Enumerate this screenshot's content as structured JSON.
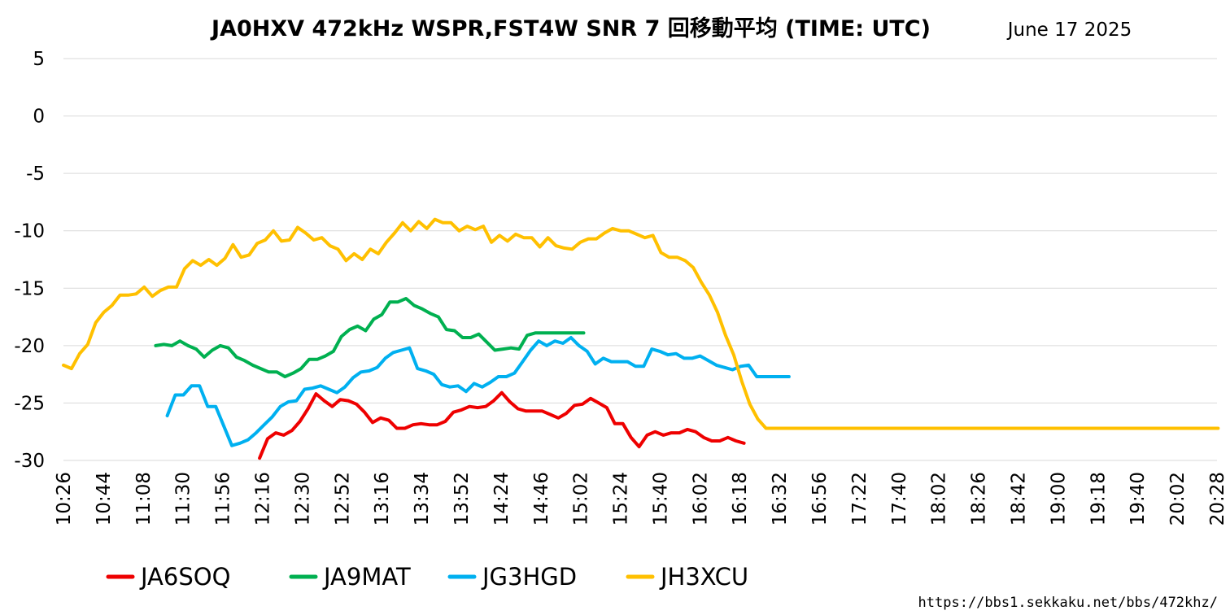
{
  "chart_data": {
    "type": "line",
    "title": "JA0HXV 472kHz WSPR,FST4W SNR 7 回移動平均 (TIME: UTC)",
    "date": "June 17 2025",
    "source_url": "https://bbs1.sekkaku.net/bbs/472khz/",
    "xlabel": "",
    "ylabel": "",
    "ylim": [
      -30,
      5
    ],
    "yticks": [
      "5",
      "0",
      "-5",
      "-10",
      "-15",
      "-20",
      "-25",
      "-30"
    ],
    "ytick_values": [
      5,
      0,
      -5,
      -10,
      -15,
      -20,
      -25,
      -30
    ],
    "x_tick_labels": [
      "10:26",
      "10:44",
      "11:08",
      "11:30",
      "11:56",
      "12:16",
      "12:30",
      "12:52",
      "13:16",
      "13:34",
      "13:52",
      "14:24",
      "14:46",
      "15:02",
      "15:24",
      "15:40",
      "16:02",
      "16:18",
      "16:32",
      "16:56",
      "17:22",
      "17:40",
      "18:02",
      "18:26",
      "18:42",
      "19:00",
      "19:18",
      "19:40",
      "20:02",
      "20:28"
    ],
    "grid": true,
    "legend_position": "bottom",
    "series": [
      {
        "name": "JA6SOQ",
        "color": "#ee0000",
        "x": [
          17,
          17.7,
          18.4,
          19.1,
          19.8,
          20.5,
          21.2,
          21.9,
          22.6,
          23.3,
          24,
          24.7,
          25.4,
          26.1,
          26.8,
          27.5,
          28.2,
          28.9,
          29.6,
          30.3,
          31,
          31.7,
          32.4,
          33.1,
          33.8,
          34.5,
          35.2,
          35.9,
          36.6,
          37.3,
          38,
          38.7,
          39.4,
          40.1,
          40.8,
          41.5,
          42.2,
          42.9,
          43.6,
          44.3,
          45,
          45.7,
          46.4,
          47.1,
          47.8,
          48.5,
          49.2,
          49.9,
          50.6,
          51.3,
          52,
          52.7,
          53.4,
          54.1,
          54.8,
          55.5,
          56.2,
          56.9,
          57.6,
          58.3,
          59
        ],
        "values": [
          -29.8,
          -28.1,
          -27.6,
          -27.8,
          -27.4,
          -26.6,
          -25.5,
          -24.2,
          -24.8,
          -25.3,
          -24.7,
          -24.8,
          -25.1,
          -25.8,
          -26.7,
          -26.3,
          -26.5,
          -27.2,
          -27.2,
          -26.9,
          -26.8,
          -26.9,
          -26.9,
          -26.6,
          -25.8,
          -25.6,
          -25.3,
          -25.4,
          -25.3,
          -24.8,
          -24.1,
          -24.9,
          -25.5,
          -25.7,
          -25.7,
          -25.7,
          -26.0,
          -26.3,
          -25.9,
          -25.2,
          -25.1,
          -24.6,
          -25.0,
          -25.4,
          -26.8,
          -26.8,
          -28.0,
          -28.8,
          -27.8,
          -27.5,
          -27.8,
          -27.6,
          -27.6,
          -27.3,
          -27.5,
          -28.0,
          -28.3,
          -28.3,
          -28.0,
          -28.3,
          -28.5
        ]
      },
      {
        "name": "JA9MAT",
        "color": "#00b050",
        "x": [
          8,
          8.7,
          9.4,
          10.1,
          10.8,
          11.5,
          12.2,
          12.9,
          13.6,
          14.3,
          15,
          15.7,
          16.4,
          17.1,
          17.8,
          18.5,
          19.2,
          19.9,
          20.6,
          21.3,
          22,
          22.7,
          23.4,
          24.1,
          24.8,
          25.5,
          26.2,
          26.9,
          27.6,
          28.3,
          29,
          29.7,
          30.4,
          31.1,
          31.8,
          32.5,
          33.2,
          33.9,
          34.6,
          35.3,
          36,
          36.7,
          37.4,
          38.1,
          38.8,
          39.5,
          40.2,
          40.9,
          41.6,
          42.3,
          43,
          43.7,
          44.4,
          45.1
        ],
        "values": [
          -20.0,
          -19.9,
          -20.0,
          -19.6,
          -20.0,
          -20.3,
          -21.0,
          -20.4,
          -20.0,
          -20.2,
          -21.0,
          -21.3,
          -21.7,
          -22.0,
          -22.3,
          -22.3,
          -22.7,
          -22.4,
          -22.0,
          -21.2,
          -21.2,
          -20.9,
          -20.5,
          -19.2,
          -18.6,
          -18.3,
          -18.7,
          -17.7,
          -17.3,
          -16.2,
          -16.2,
          -15.9,
          -16.5,
          -16.8,
          -17.2,
          -17.5,
          -18.6,
          -18.7,
          -19.3,
          -19.3,
          -19.0,
          -19.7,
          -20.4,
          -20.3,
          -20.2,
          -20.3,
          -19.1,
          -18.9,
          -18.9,
          -18.9,
          -18.9,
          -18.9,
          -18.9,
          -18.9
        ]
      },
      {
        "name": "JG3HGD",
        "color": "#00b0f0",
        "x": [
          9,
          9.7,
          10.4,
          11.1,
          11.8,
          12.5,
          13.2,
          13.9,
          14.6,
          15.3,
          16,
          16.7,
          17.4,
          18.1,
          18.8,
          19.5,
          20.2,
          20.9,
          21.6,
          22.3,
          23,
          23.7,
          24.4,
          25.1,
          25.8,
          26.5,
          27.2,
          27.9,
          28.6,
          29.3,
          30,
          30.7,
          31.4,
          32.1,
          32.8,
          33.5,
          34.2,
          34.9,
          35.6,
          36.3,
          37,
          37.7,
          38.4,
          39.1,
          39.8,
          40.5,
          41.2,
          41.9,
          42.6,
          43.3,
          44,
          44.7,
          45.4,
          46.1,
          46.8,
          47.5,
          48.2,
          48.9,
          49.6,
          50.3,
          51,
          51.7,
          52.4,
          53.1,
          53.8,
          54.5,
          55.2,
          55.9,
          56.6,
          57.3,
          58,
          58.7,
          59.4,
          60.1,
          60.8,
          61.5,
          62.2,
          62.9
        ],
        "values": [
          -26.1,
          -24.3,
          -24.3,
          -23.5,
          -23.5,
          -25.3,
          -25.3,
          -27.0,
          -28.7,
          -28.5,
          -28.2,
          -27.6,
          -26.9,
          -26.2,
          -25.3,
          -24.9,
          -24.8,
          -23.8,
          -23.7,
          -23.5,
          -23.8,
          -24.1,
          -23.6,
          -22.8,
          -22.3,
          -22.2,
          -21.9,
          -21.1,
          -20.6,
          -20.4,
          -20.2,
          -22.0,
          -22.2,
          -22.5,
          -23.4,
          -23.6,
          -23.5,
          -24.0,
          -23.3,
          -23.6,
          -23.2,
          -22.7,
          -22.7,
          -22.4,
          -21.4,
          -20.4,
          -19.6,
          -20.0,
          -19.6,
          -19.8,
          -19.3,
          -20.0,
          -20.5,
          -21.6,
          -21.1,
          -21.4,
          -21.4,
          -21.4,
          -21.8,
          -21.8,
          -20.3,
          -20.5,
          -20.8,
          -20.7,
          -21.1,
          -21.1,
          -20.9,
          -21.3,
          -21.7,
          -21.9,
          -22.1,
          -21.8,
          -21.7,
          -22.7,
          -22.7,
          -22.7,
          -22.7,
          -22.7
        ]
      },
      {
        "name": "JH3XCU",
        "color": "#ffc000",
        "x": [
          0,
          0.7,
          1.4,
          2.1,
          2.8,
          3.5,
          4.2,
          4.9,
          5.6,
          6.3,
          7,
          7.7,
          8.4,
          9.1,
          9.8,
          10.5,
          11.2,
          11.9,
          12.6,
          13.3,
          14,
          14.7,
          15.4,
          16.1,
          16.8,
          17.5,
          18.2,
          18.9,
          19.6,
          20.3,
          21,
          21.7,
          22.4,
          23.1,
          23.8,
          24.5,
          25.2,
          25.9,
          26.6,
          27.3,
          28,
          28.7,
          29.4,
          30.1,
          30.8,
          31.5,
          32.2,
          32.9,
          33.6,
          34.3,
          35,
          35.7,
          36.4,
          37.1,
          37.8,
          38.5,
          39.2,
          39.9,
          40.6,
          41.3,
          42,
          42.7,
          43.4,
          44.1,
          44.8,
          45.5,
          46.2,
          46.9,
          47.6,
          48.3,
          49,
          49.7,
          50.4,
          51.1,
          51.8,
          52.5,
          53.2,
          53.9,
          54.6,
          55.3,
          56,
          56.7,
          57.4,
          58.1,
          58.8,
          59.5,
          60.2,
          60.9,
          61.6,
          62.3,
          63,
          63.7,
          64.4,
          65.1,
          65.8,
          66.5,
          67.2,
          67.9,
          68.6,
          69.3,
          70,
          70.7,
          71.4,
          72.1,
          72.8,
          73.5,
          74.2,
          74.9,
          75.6,
          76.3,
          77,
          77.7,
          78.4,
          79.1,
          79.8,
          80.5,
          81.2,
          81.9,
          82.6,
          83.3,
          84,
          84.7,
          85.4,
          86.1,
          86.8,
          87.5,
          88.2,
          88.9,
          89.6,
          90.3,
          91,
          91.7,
          92.4,
          93.1,
          93.8,
          94.5,
          95.2,
          95.9,
          96.6,
          97.3,
          98,
          98.7,
          99.4,
          100.1
        ],
        "values": [
          -21.7,
          -22.0,
          -20.7,
          -19.9,
          -18.0,
          -17.1,
          -16.5,
          -15.6,
          -15.6,
          -15.5,
          -14.9,
          -15.7,
          -15.2,
          -14.9,
          -14.9,
          -13.3,
          -12.6,
          -13.0,
          -12.5,
          -13.0,
          -12.4,
          -11.2,
          -12.3,
          -12.1,
          -11.1,
          -10.8,
          -10.0,
          -10.9,
          -10.8,
          -9.7,
          -10.2,
          -10.8,
          -10.6,
          -11.3,
          -11.6,
          -12.6,
          -12.0,
          -12.5,
          -11.6,
          -12.0,
          -11.0,
          -10.2,
          -9.3,
          -10.0,
          -9.2,
          -9.8,
          -9.0,
          -9.3,
          -9.3,
          -10.0,
          -9.6,
          -9.9,
          -9.6,
          -11.0,
          -10.4,
          -10.9,
          -10.3,
          -10.6,
          -10.6,
          -11.4,
          -10.6,
          -11.3,
          -11.5,
          -11.6,
          -11.0,
          -10.7,
          -10.7,
          -10.2,
          -9.8,
          -10.0,
          -10.0,
          -10.3,
          -10.6,
          -10.4,
          -11.9,
          -12.3,
          -12.3,
          -12.6,
          -13.2,
          -14.5,
          -15.6,
          -17.1,
          -19.1,
          -20.8,
          -23.1,
          -25.1,
          -26.4,
          -27.2,
          -27.2,
          -27.2,
          -27.2,
          -27.2,
          -27.2,
          -27.2,
          -27.2,
          -27.2,
          -27.2,
          -27.2,
          -27.2,
          -27.2,
          -27.2,
          -27.2,
          -27.2,
          -27.2,
          -27.2,
          -27.2,
          -27.2,
          -27.2,
          -27.2,
          -27.2,
          -27.2,
          -27.2,
          -27.2,
          -27.2,
          -27.2,
          -27.2,
          -27.2,
          -27.2,
          -27.2,
          -27.2,
          -27.2,
          -27.2,
          -27.2,
          -27.2,
          -27.2,
          -27.2,
          -27.2,
          -27.2,
          -27.2,
          -27.2,
          -27.2,
          -27.2,
          -27.2,
          -27.2,
          -27.2,
          -27.2,
          -27.2,
          -27.2,
          -27.2,
          -27.2,
          -27.2,
          -27.2,
          -27.2,
          -27.2
        ]
      }
    ]
  }
}
